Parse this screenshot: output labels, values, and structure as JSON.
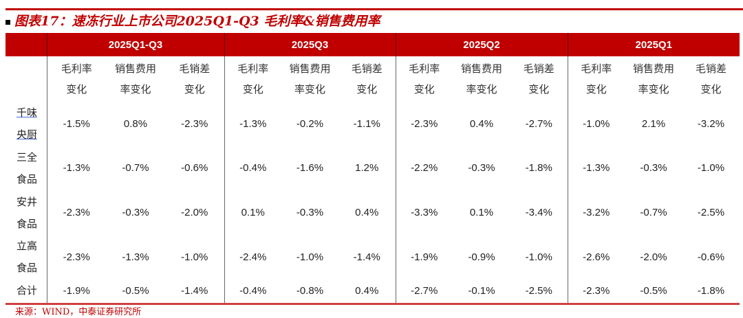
{
  "title": "图表17：速冻行业上市公司2025Q1-Q3 毛利率&销售费用率",
  "periods": [
    "2025Q1-Q3",
    "2025Q3",
    "2025Q2",
    "2025Q1"
  ],
  "metric_headers": [
    [
      "毛利率",
      "变化"
    ],
    [
      "销售费用",
      "率变化"
    ],
    [
      "毛销差",
      "变化"
    ]
  ],
  "rows": [
    {
      "name": [
        "千味",
        "央厨"
      ],
      "values": [
        "-1.5%",
        "0.8%",
        "-2.3%",
        "-1.3%",
        "-0.2%",
        "-1.1%",
        "-2.3%",
        "0.4%",
        "-2.7%",
        "-1.0%",
        "2.1%",
        "-3.2%"
      ]
    },
    {
      "name": [
        "三全",
        "食品"
      ],
      "values": [
        "-1.3%",
        "-0.7%",
        "-0.6%",
        "-0.4%",
        "-1.6%",
        "1.2%",
        "-2.2%",
        "-0.3%",
        "-1.8%",
        "-1.3%",
        "-0.3%",
        "-1.0%"
      ]
    },
    {
      "name": [
        "安井",
        "食品"
      ],
      "values": [
        "-2.3%",
        "-0.3%",
        "-2.0%",
        "0.1%",
        "-0.3%",
        "0.4%",
        "-3.3%",
        "0.1%",
        "-3.4%",
        "-3.2%",
        "-0.7%",
        "-2.5%"
      ]
    },
    {
      "name": [
        "立高",
        "食品"
      ],
      "values": [
        "-2.3%",
        "-1.3%",
        "-1.0%",
        "-2.4%",
        "-1.0%",
        "-1.4%",
        "-1.9%",
        "-0.9%",
        "-1.0%",
        "-2.6%",
        "-2.0%",
        "-0.6%"
      ]
    },
    {
      "name": [
        "合计"
      ],
      "values": [
        "-1.9%",
        "-0.5%",
        "-1.4%",
        "-0.4%",
        "-0.8%",
        "0.4%",
        "-2.7%",
        "-0.1%",
        "-2.5%",
        "-2.3%",
        "-0.5%",
        "-1.8%"
      ]
    }
  ],
  "source": "来源：WIND，中泰证券研究所",
  "colors": {
    "accent": "#c00000"
  }
}
